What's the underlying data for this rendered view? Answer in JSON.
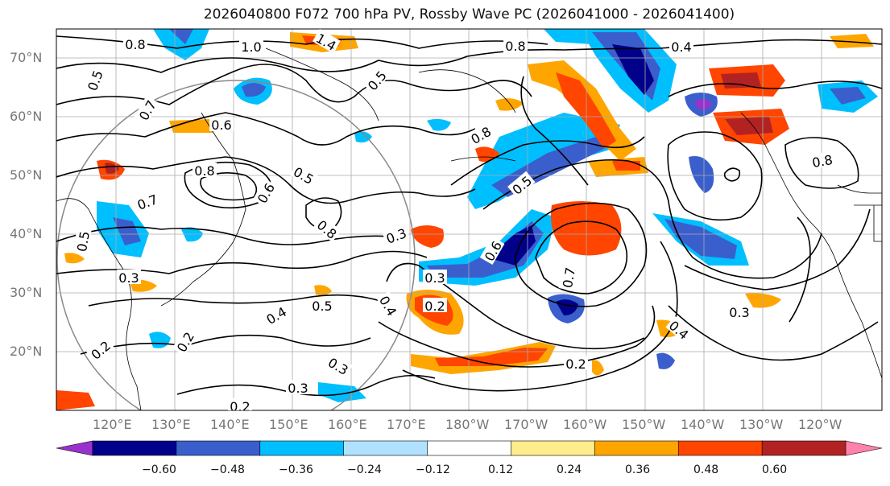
{
  "title": "2026040800 F072 700 hPa PV, Rossby Wave PC (2026041000 - 2026041400)",
  "lat_labels": [
    "70°N",
    "60°N",
    "50°N",
    "40°N",
    "30°N",
    "20°N"
  ],
  "lon_labels": [
    "120°E",
    "130°E",
    "140°E",
    "150°E",
    "160°E",
    "170°E",
    "180°W",
    "170°W",
    "160°W",
    "150°W",
    "140°W",
    "130°W",
    "120°W"
  ],
  "colorbar": {
    "colors": [
      "#9932cc",
      "#00008b",
      "#3a5fcd",
      "#00bfff",
      "#b0e2ff",
      "#ffffff",
      "#ffec8b",
      "#ffa500",
      "#ff4500",
      "#b22222",
      "#ff82ab"
    ],
    "labels": [
      "−0.60",
      "−0.48",
      "−0.36",
      "−0.24",
      "−0.12",
      "0.12",
      "0.24",
      "0.36",
      "0.48",
      "0.60"
    ]
  },
  "contour_labels": [
    {
      "text": "0.8"
    },
    {
      "text": "1.0"
    },
    {
      "text": "1.4"
    },
    {
      "text": "0.5"
    },
    {
      "text": "0.7"
    },
    {
      "text": "0.6"
    },
    {
      "text": "0.8"
    },
    {
      "text": "0.5"
    },
    {
      "text": "0.7"
    },
    {
      "text": "0.8"
    },
    {
      "text": "0.6"
    },
    {
      "text": "0.5"
    },
    {
      "text": "0.3"
    },
    {
      "text": "0.4"
    },
    {
      "text": "0.5"
    },
    {
      "text": "0.2"
    },
    {
      "text": "0.3"
    },
    {
      "text": "0.2"
    },
    {
      "text": "0.3"
    },
    {
      "text": "0.3"
    },
    {
      "text": "0.2"
    },
    {
      "text": "0.4"
    },
    {
      "text": "0.2"
    },
    {
      "text": "0.7"
    },
    {
      "text": "0.8"
    },
    {
      "text": "0.4"
    },
    {
      "text": "0.5"
    },
    {
      "text": "0.8"
    },
    {
      "text": "0.3"
    },
    {
      "text": "0.3"
    },
    {
      "text": "0.4"
    },
    {
      "text": "0.2"
    },
    {
      "text": "0.6"
    },
    {
      "text": "0.5"
    },
    {
      "text": "0.8"
    }
  ]
}
